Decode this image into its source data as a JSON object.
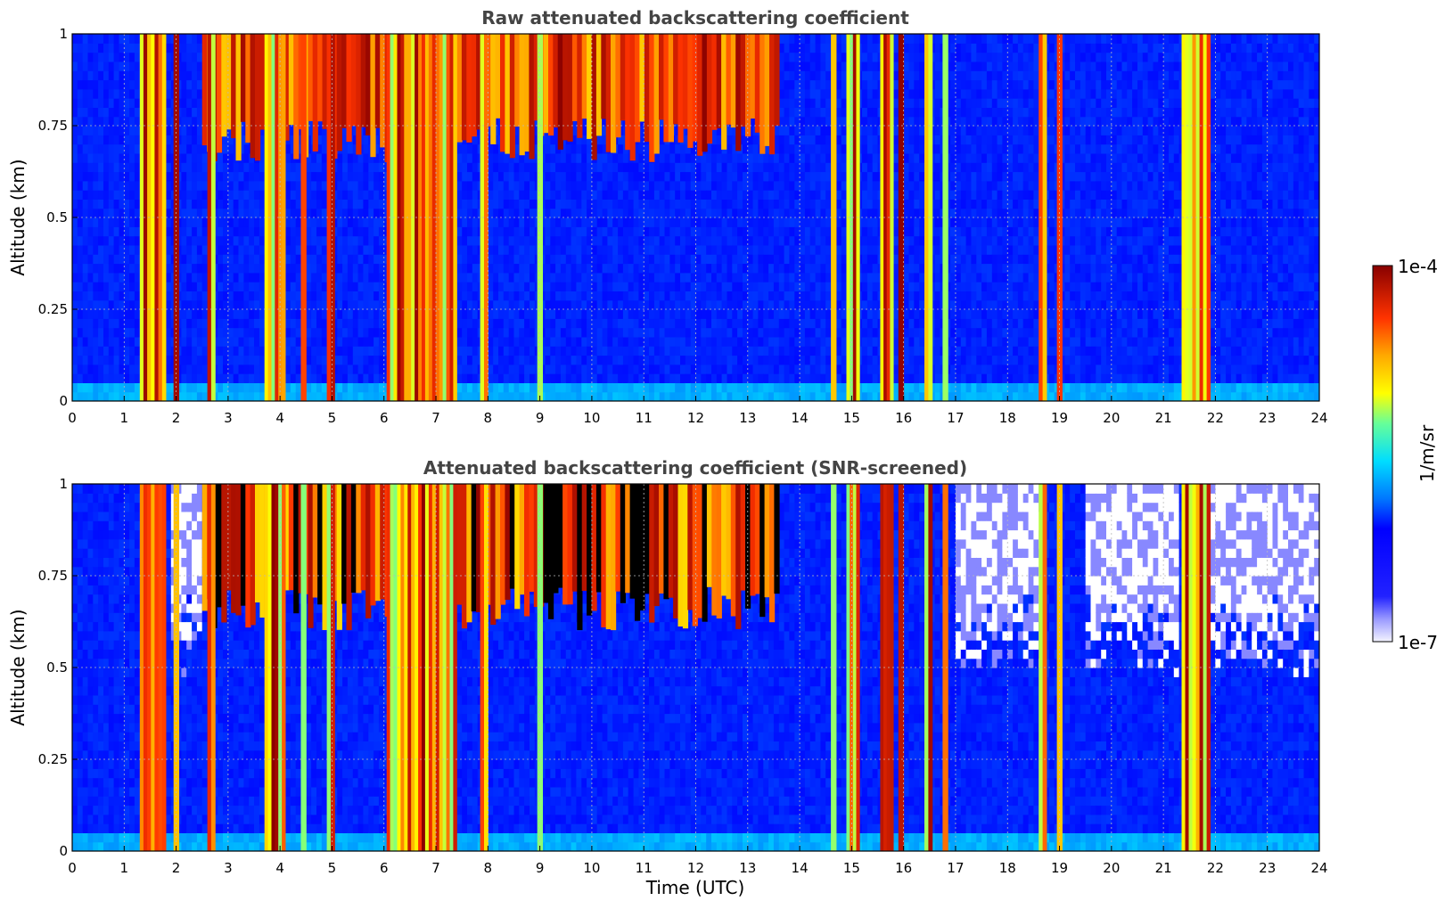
{
  "chart_data": [
    {
      "type": "heatmap",
      "title": "Raw attenuated backscattering coefficient",
      "xlabel": "",
      "ylabel": "Altitude (km)",
      "xlim": [
        0,
        24
      ],
      "ylim": [
        0,
        1
      ],
      "xticks": [
        "0",
        "1",
        "2",
        "3",
        "4",
        "5",
        "6",
        "7",
        "8",
        "9",
        "10",
        "11",
        "12",
        "13",
        "14",
        "15",
        "16",
        "17",
        "18",
        "19",
        "20",
        "21",
        "22",
        "23",
        "24"
      ],
      "yticks": [
        "0",
        "0.25",
        "0.5",
        "0.75",
        "1"
      ],
      "grid": true,
      "screened": false,
      "cloud_bands_utc": [
        [
          1.3,
          1.8
        ],
        [
          1.95,
          2.05
        ],
        [
          2.6,
          2.75
        ],
        [
          3.7,
          4.1
        ],
        [
          4.4,
          4.5
        ],
        [
          4.9,
          5.05
        ],
        [
          6.05,
          7.4
        ],
        [
          7.85,
          8.0
        ],
        [
          8.95,
          9.05
        ],
        [
          14.6,
          14.7
        ],
        [
          14.9,
          15.15
        ],
        [
          15.55,
          15.8
        ],
        [
          15.9,
          16.0
        ],
        [
          16.4,
          16.55
        ],
        [
          16.75,
          16.85
        ],
        [
          18.6,
          18.75
        ],
        [
          18.95,
          19.05
        ],
        [
          21.35,
          21.9
        ]
      ],
      "cloud_top_layer": {
        "time_range_utc": [
          2.5,
          13.6
        ],
        "base_km": 0.65,
        "top_km": 1.0
      }
    },
    {
      "type": "heatmap",
      "title": "Attenuated backscattering coefficient (SNR-screened)",
      "xlabel": "Time (UTC)",
      "ylabel": "Altitude (km)",
      "xlim": [
        0,
        24
      ],
      "ylim": [
        0,
        1
      ],
      "xticks": [
        "0",
        "1",
        "2",
        "3",
        "4",
        "5",
        "6",
        "7",
        "8",
        "9",
        "10",
        "11",
        "12",
        "13",
        "14",
        "15",
        "16",
        "17",
        "18",
        "19",
        "20",
        "21",
        "22",
        "23",
        "24"
      ],
      "yticks": [
        "0",
        "0.25",
        "0.5",
        "0.75",
        "1"
      ],
      "grid": true,
      "screened": true,
      "cloud_bands_utc": [
        [
          1.3,
          1.8
        ],
        [
          1.95,
          2.05
        ],
        [
          2.6,
          2.75
        ],
        [
          3.7,
          4.1
        ],
        [
          4.4,
          4.5
        ],
        [
          4.9,
          5.05
        ],
        [
          6.05,
          7.4
        ],
        [
          7.85,
          8.0
        ],
        [
          8.95,
          9.05
        ],
        [
          14.6,
          14.7
        ],
        [
          14.9,
          15.15
        ],
        [
          15.55,
          15.8
        ],
        [
          15.9,
          16.0
        ],
        [
          16.4,
          16.55
        ],
        [
          16.75,
          16.85
        ],
        [
          18.6,
          18.75
        ],
        [
          18.95,
          19.05
        ],
        [
          21.35,
          21.9
        ]
      ],
      "cloud_top_layer": {
        "time_range_utc": [
          2.5,
          13.6
        ],
        "base_km": 0.6,
        "top_km": 1.0
      },
      "screened_out_regions_utc": [
        [
          1.9,
          2.4
        ],
        [
          17.0,
          18.6
        ],
        [
          19.5,
          21.2
        ],
        [
          21.9,
          24
        ]
      ]
    }
  ],
  "colorbar": {
    "label": "1/m/sr",
    "max_label": "1e-4",
    "min_label": "1e-7",
    "scale": "log",
    "colormap": "jet",
    "colors": [
      "#f4f4ff",
      "#b8b8ff",
      "#5555ff",
      "#0000ff",
      "#0033ff",
      "#0088ff",
      "#00ccff",
      "#22ffdd",
      "#88ff77",
      "#ffff00",
      "#ffaa00",
      "#ff4400",
      "#dd0000",
      "#880000"
    ]
  }
}
